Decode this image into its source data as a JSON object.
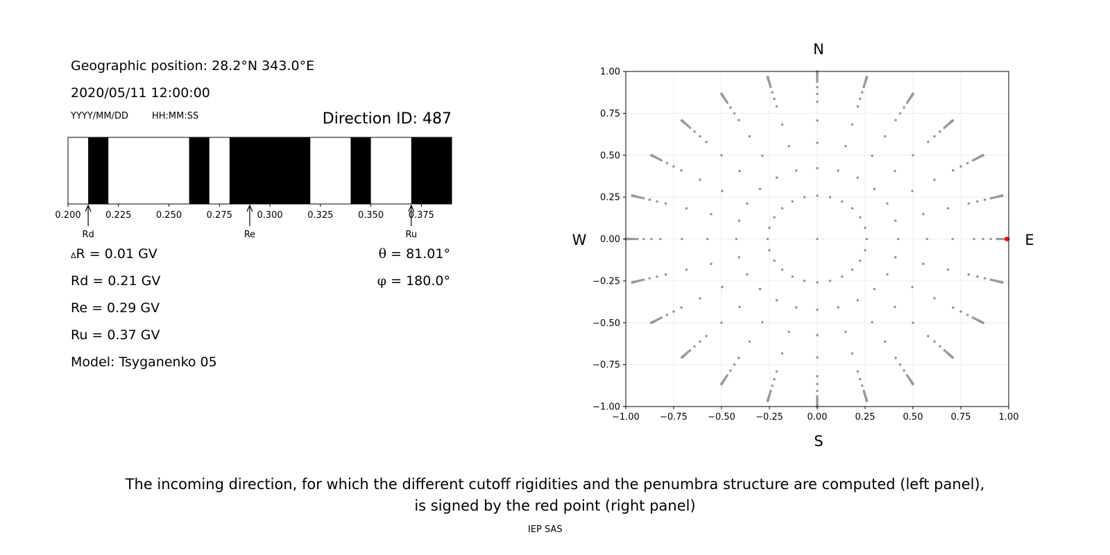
{
  "header": {
    "geo_position": "Geographic position: 28.2°N 343.0°E",
    "datetime": "2020/05/11 12:00:00",
    "date_format": "YYYY/MM/DD",
    "time_format": "HH:MM:SS",
    "direction_id": "Direction ID: 487"
  },
  "results": {
    "delta_r_symbol": "Δ",
    "delta_r": "R = 0.01 GV",
    "rd": "Rd = 0.21 GV",
    "re": "Re = 0.29 GV",
    "ru": "Ru = 0.37 GV",
    "model": "Model: Tsyganenko 05",
    "theta_symbol": "θ",
    "theta": " = 81.01°",
    "phi_symbol": "φ",
    "phi": " = 180.0°"
  },
  "caption": {
    "line1": "The incoming direction, for which the different cutoff rigidities and the penumbra structure are computed (left panel),",
    "line2": "is signed by the red point (right panel)",
    "credit": "IEP SAS"
  },
  "chart_data": [
    {
      "type": "penumbra-bar",
      "xlim": [
        0.2,
        0.39
      ],
      "xticks": [
        "0.200",
        "0.225",
        "0.250",
        "0.275",
        "0.300",
        "0.325",
        "0.350",
        "0.375"
      ],
      "xtick_values": [
        0.2,
        0.225,
        0.25,
        0.275,
        0.3,
        0.325,
        0.35,
        0.375
      ],
      "forbidden_bands": [
        [
          0.21,
          0.22
        ],
        [
          0.26,
          0.27
        ],
        [
          0.28,
          0.32
        ],
        [
          0.34,
          0.35
        ],
        [
          0.37,
          0.39
        ]
      ],
      "markers": [
        {
          "label": "Rd",
          "value": 0.21
        },
        {
          "label": "Re",
          "value": 0.29
        },
        {
          "label": "Ru",
          "value": 0.37
        }
      ],
      "colors": {
        "forbidden": "#000000",
        "allowed": "#ffffff"
      }
    },
    {
      "type": "scatter",
      "xlim": [
        -1.0,
        1.0
      ],
      "ylim": [
        -1.0,
        1.0
      ],
      "xticks": [
        "−1.00",
        "−0.75",
        "−0.50",
        "−0.25",
        "0.00",
        "0.25",
        "0.50",
        "0.75",
        "1.00"
      ],
      "yticks": [
        "−1.00",
        "−0.75",
        "−0.50",
        "−0.25",
        "0.00",
        "0.25",
        "0.50",
        "0.75",
        "1.00"
      ],
      "tick_values": [
        -1.0,
        -0.75,
        -0.5,
        -0.25,
        0.0,
        0.25,
        0.5,
        0.75,
        1.0
      ],
      "grid": true,
      "compass": {
        "north": "N",
        "south": "S",
        "west": "W",
        "east": "E"
      },
      "grid_directions": {
        "center": [
          0.0,
          0.0
        ],
        "zenith_rings_deg": [
          15,
          25,
          35,
          45,
          55,
          60,
          65,
          70,
          72,
          74,
          76,
          78,
          80,
          81,
          82,
          83,
          84,
          85,
          86,
          87,
          88,
          89,
          90
        ],
        "azimuth_step_deg": 15,
        "projection": "r = sin(zenith)",
        "color": "#999999"
      },
      "highlight_point": {
        "x": 0.99,
        "y": 0.0,
        "color": "#ff0000"
      }
    }
  ]
}
